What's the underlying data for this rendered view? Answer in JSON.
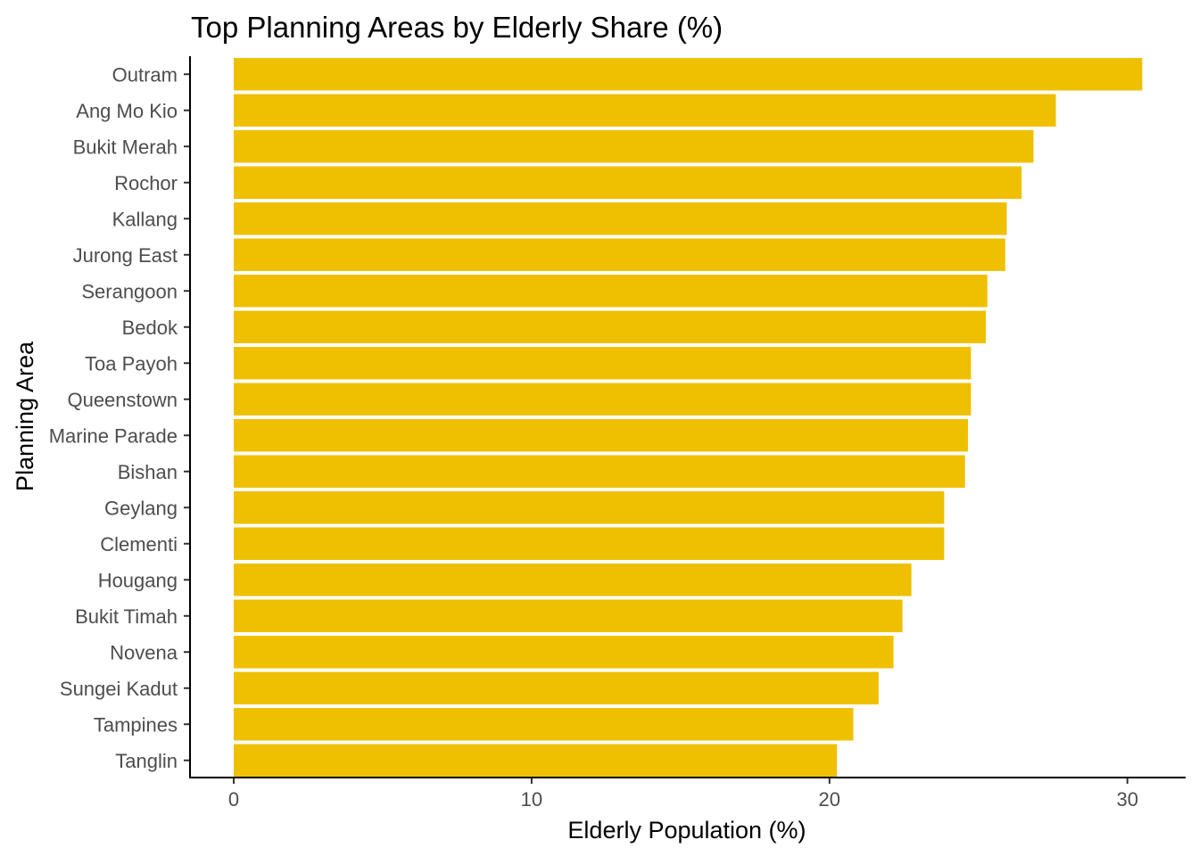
{
  "chart_data": {
    "type": "bar",
    "orientation": "horizontal",
    "title": "Top Planning Areas by Elderly Share (%)",
    "xlabel": "Elderly Population (%)",
    "ylabel": "Planning Area",
    "xlim": [
      0,
      31.5
    ],
    "xticks": [
      0,
      10,
      20,
      30
    ],
    "categories": [
      "Outram",
      "Ang Mo Kio",
      "Bukit Merah",
      "Rochor",
      "Kallang",
      "Jurong East",
      "Serangoon",
      "Bedok",
      "Toa Payoh",
      "Queenstown",
      "Marine Parade",
      "Bishan",
      "Geylang",
      "Clementi",
      "Hougang",
      "Bukit Timah",
      "Novena",
      "Sungei Kadut",
      "Tampines",
      "Tanglin"
    ],
    "values": [
      30.5,
      27.6,
      26.85,
      26.45,
      25.95,
      25.9,
      25.3,
      25.25,
      24.75,
      24.75,
      24.65,
      24.55,
      23.85,
      23.85,
      22.75,
      22.45,
      22.15,
      21.65,
      20.8,
      20.25
    ],
    "bar_color": "#EEC000",
    "grid": false,
    "legend": "none"
  }
}
